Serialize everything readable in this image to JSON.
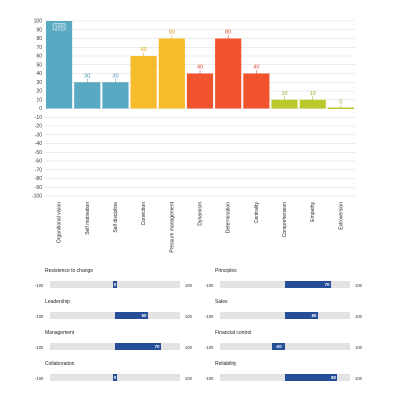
{
  "chart_data": [
    {
      "type": "bar",
      "categories": [
        "Organitional vision",
        "Self motivation",
        "Self discipline",
        "Conviction",
        "Pressure management",
        "Dynamism",
        "Determination",
        "Centrality",
        "Comprehension",
        "Empathy",
        "Extroversion"
      ],
      "values": [
        100,
        30,
        30,
        60,
        80,
        40,
        80,
        40,
        10,
        10,
        0
      ],
      "data_labels": [
        "100",
        "30",
        "30",
        "60",
        "80",
        "40",
        "80",
        "40",
        "10",
        "10",
        "0"
      ],
      "colors": [
        "#5aa9c3",
        "#5aa9c3",
        "#5aa9c3",
        "#f7bc2b",
        "#f7bc2b",
        "#f0532e",
        "#f0532e",
        "#f0532e",
        "#bcc92c",
        "#bcc92c",
        "#bcc92c"
      ],
      "label_colors": [
        "#ffffff",
        "#4b8fa8",
        "#4b8fa8",
        "#d99a14",
        "#d99a14",
        "#d9442a",
        "#d9442a",
        "#d9442a",
        "#9aa824",
        "#9aa824",
        "#9aa824"
      ],
      "ylim": [
        -100,
        100
      ],
      "yticks": [
        "100",
        "90",
        "80",
        "70",
        "60",
        "50",
        "40",
        "30",
        "20",
        "10",
        "0",
        "-10",
        "-20",
        "-30",
        "-40",
        "-50",
        "-60",
        "-70",
        "-80",
        "-90",
        "-100"
      ],
      "grid": true
    },
    {
      "type": "bar",
      "orientation": "horizontal",
      "range": [
        -100,
        100
      ],
      "range_labels": [
        "-100",
        "100"
      ],
      "colors": {
        "fill": "#254d98",
        "track": "#e3e3e3"
      },
      "items": [
        {
          "label": "Resistence to change",
          "value": 0,
          "value_label": "0"
        },
        {
          "label": "Principles",
          "value": 70,
          "value_label": "70"
        },
        {
          "label": "Leadership",
          "value": 50,
          "value_label": "50"
        },
        {
          "label": "Sales",
          "value": 50,
          "value_label": "50"
        },
        {
          "label": "Management",
          "value": 70,
          "value_label": "70"
        },
        {
          "label": "Financial control",
          "value": -20,
          "value_label": "-20"
        },
        {
          "label": "Collaboration",
          "value": 0,
          "value_label": "0"
        },
        {
          "label": "Reliability",
          "value": 80,
          "value_label": "80"
        }
      ]
    }
  ]
}
